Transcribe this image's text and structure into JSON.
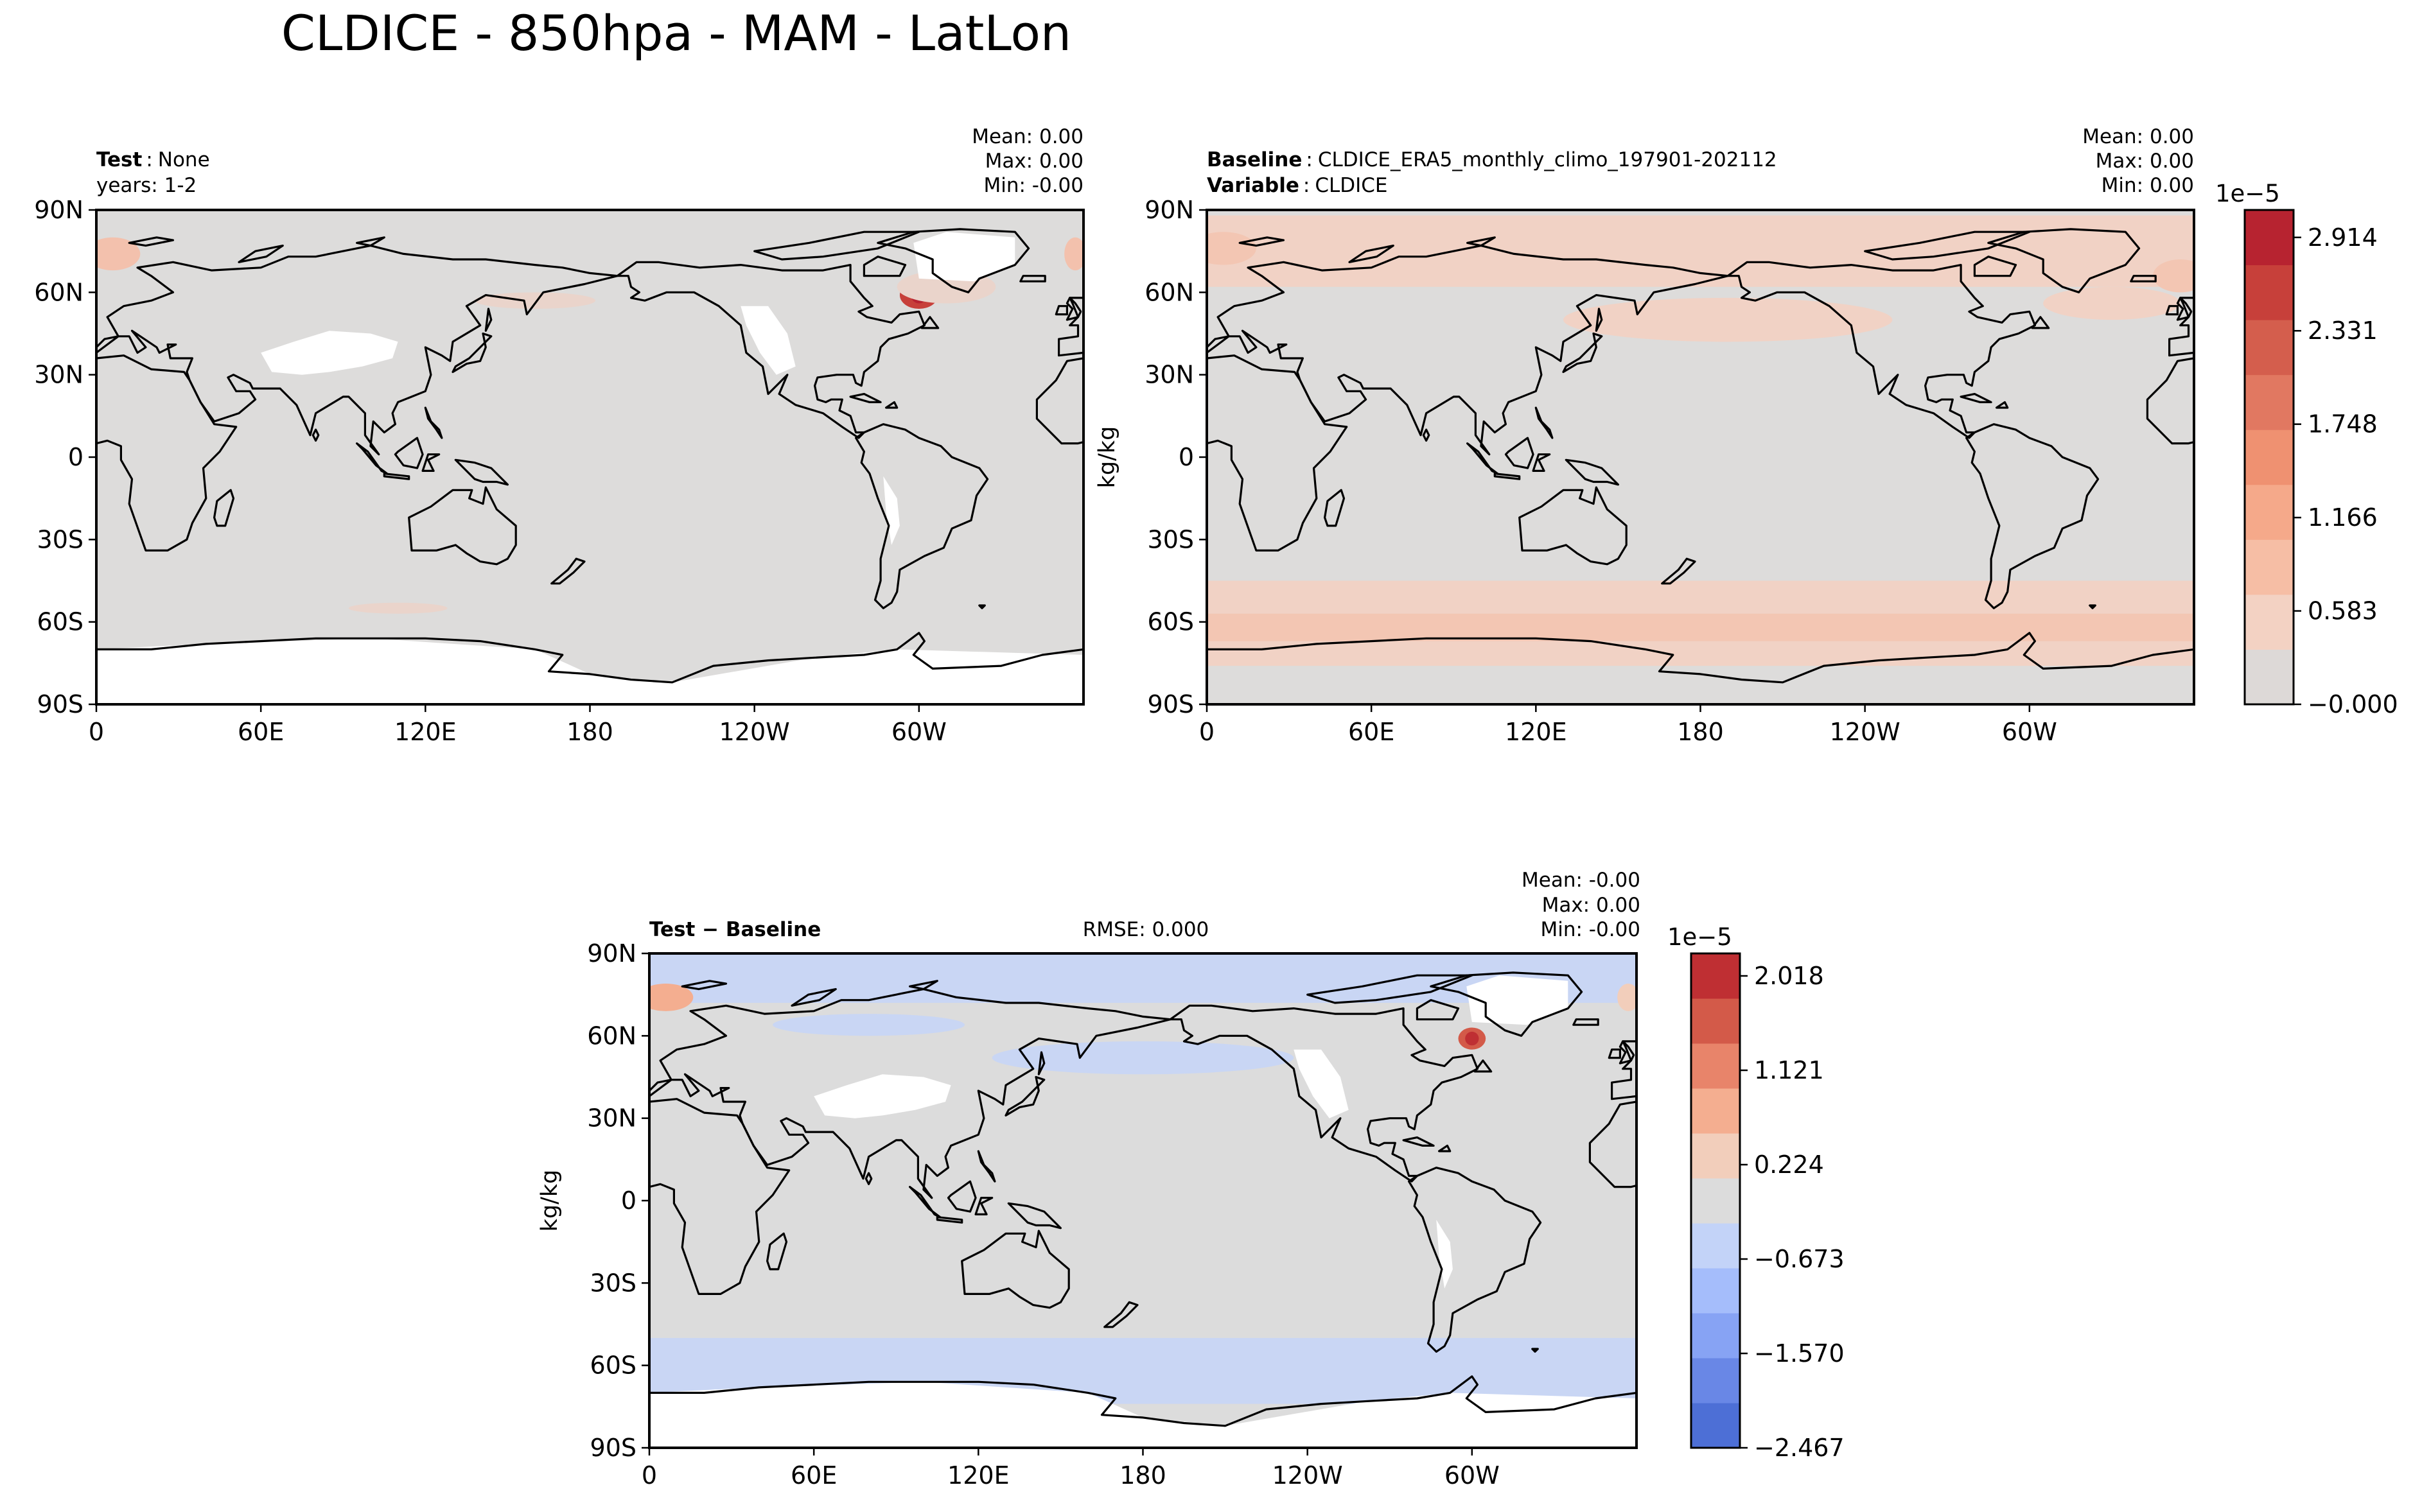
{
  "figure": {
    "title": "CLDICE - 850hpa - MAM - LatLon"
  },
  "colors": {
    "land_fill": "#ffffff",
    "near_zero": "#dddcdb",
    "frame": "#000000",
    "coast": "#000000"
  },
  "panels": [
    {
      "id": "test",
      "label_bold": "Test",
      "label_value": "None",
      "label_line2": "years: 1-2",
      "label2_bold": "",
      "label2_value": "",
      "stats": {
        "mean": "Mean:  0.00",
        "max": "Max:  0.00",
        "min": "Min: -0.00"
      },
      "rmse": "",
      "ylabel": ""
    },
    {
      "id": "baseline",
      "label_bold": "Baseline",
      "label_value": "CLDICE_ERA5_monthly_climo_197901-202112",
      "label_line2": "",
      "label2_bold": "Variable",
      "label2_value": "CLDICE",
      "stats": {
        "mean": "Mean:  0.00",
        "max": "Max:  0.00",
        "min": "Min:  0.00"
      },
      "rmse": "",
      "ylabel": "kg/kg"
    },
    {
      "id": "diff",
      "label_bold": "Test − Baseline",
      "label_value": "",
      "label_line2": "",
      "label2_bold": "",
      "label2_value": "",
      "stats": {
        "mean": "Mean: -0.00",
        "max": "Max:  0.00",
        "min": "Min: -0.00"
      },
      "rmse": "RMSE: 0.000",
      "ylabel": "kg/kg"
    }
  ],
  "colorbars": [
    {
      "id": "main",
      "exponent": "1e−5",
      "tick_labels": [
        "2.914",
        "2.331",
        "1.748",
        "1.166",
        "0.583",
        "−0.000"
      ],
      "colors": [
        "#ddd9d7",
        "#f3d2c3",
        "#f6bea5",
        "#f5a98a",
        "#ef9171",
        "#e17861",
        "#d45e4d",
        "#c7403a",
        "#b72330"
      ]
    },
    {
      "id": "diff",
      "exponent": "1e−5",
      "tick_labels": [
        "2.018",
        "1.121",
        "0.224",
        "−0.673",
        "−1.570",
        "−2.467"
      ],
      "colors": [
        "#4d6fd6",
        "#6987e6",
        "#87a3f4",
        "#a5bdfb",
        "#c3d3f8",
        "#dcdcdc",
        "#f2cebb",
        "#f4ae90",
        "#e8846a",
        "#d35a49",
        "#bf2f33"
      ]
    }
  ],
  "chart_data": [
    {
      "type": "contour-map",
      "title": "Test: None (years: 1-2)",
      "variable": "CLDICE",
      "units": "kg/kg",
      "xlabel": "",
      "ylabel": "",
      "x_ticks": [
        "0",
        "60E",
        "120E",
        "180",
        "120W",
        "60W"
      ],
      "y_ticks": [
        "90N",
        "60N",
        "30N",
        "0",
        "30S",
        "60S",
        "90S"
      ],
      "xlim": [
        0,
        360
      ],
      "ylim": [
        -90,
        90
      ],
      "stats": {
        "mean": 0.0,
        "max": 0.0,
        "min": -0.0
      },
      "features": [
        {
          "lon": [
            295,
            305
          ],
          "lat": [
            55,
            63
          ],
          "level": 8,
          "note": "Labrador Sea maximum"
        },
        {
          "lon": [
            0,
            12
          ],
          "lat": [
            68,
            80
          ],
          "level": 3
        },
        {
          "lon": [
            355,
            360
          ],
          "lat": [
            68,
            80
          ],
          "level": 3
        },
        {
          "lon": [
            280,
            320
          ],
          "lat": [
            58,
            72
          ],
          "level": 1
        },
        {
          "lon": [
            150,
            170
          ],
          "lat": [
            -55,
            -60
          ],
          "level": 1
        }
      ]
    },
    {
      "type": "contour-map",
      "title": "Baseline: CLDICE_ERA5_monthly_climo_197901-202112",
      "variable": "CLDICE",
      "units": "kg/kg",
      "xlabel": "",
      "ylabel": "kg/kg",
      "x_ticks": [
        "0",
        "60E",
        "120E",
        "180",
        "120W",
        "60W"
      ],
      "y_ticks": [
        "90N",
        "60N",
        "30N",
        "0",
        "30S",
        "60S",
        "90S"
      ],
      "xlim": [
        0,
        360
      ],
      "ylim": [
        -90,
        90
      ],
      "stats": {
        "mean": 0.0,
        "max": 0.0,
        "min": 0.0
      },
      "features": [
        {
          "lon": [
            0,
            360
          ],
          "lat": [
            62,
            88
          ],
          "level": 2,
          "note": "northern high-latitude band"
        },
        {
          "lon": [
            140,
            240
          ],
          "lat": [
            42,
            58
          ],
          "level": 2,
          "note": "North Pacific"
        },
        {
          "lon": [
            0,
            360
          ],
          "lat": [
            -75,
            -45
          ],
          "level": 2,
          "note": "Southern Ocean band"
        },
        {
          "lon": [
            0,
            360
          ],
          "lat": [
            -65,
            -58
          ],
          "level": 3
        }
      ]
    },
    {
      "type": "contour-map",
      "title": "Test − Baseline",
      "variable": "CLDICE",
      "units": "kg/kg",
      "xlabel": "",
      "ylabel": "kg/kg",
      "x_ticks": [
        "0",
        "60E",
        "120E",
        "180",
        "120W",
        "60W"
      ],
      "y_ticks": [
        "90N",
        "60N",
        "30N",
        "0",
        "30S",
        "60S",
        "90S"
      ],
      "xlim": [
        0,
        360
      ],
      "ylim": [
        -90,
        90
      ],
      "rmse": 0.0,
      "stats": {
        "mean": -0.0,
        "max": 0.0,
        "min": -0.0
      },
      "features": [
        {
          "lon": [
            295,
            305
          ],
          "lat": [
            55,
            63
          ],
          "level": 9,
          "note": "positive: Labrador Sea"
        },
        {
          "lon": [
            0,
            12
          ],
          "lat": [
            68,
            80
          ],
          "level": 6
        },
        {
          "lon": [
            0,
            360
          ],
          "lat": [
            -72,
            -50
          ],
          "level": 4,
          "note": "negative: Southern Ocean"
        },
        {
          "lon": [
            0,
            360
          ],
          "lat": [
            70,
            88
          ],
          "level": 4,
          "note": "negative: Arctic"
        },
        {
          "lon": [
            140,
            240
          ],
          "lat": [
            42,
            58
          ],
          "level": 4,
          "note": "negative: North Pacific"
        }
      ]
    }
  ]
}
